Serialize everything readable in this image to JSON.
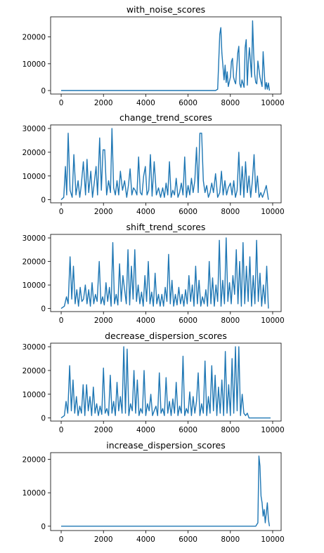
{
  "chart_data": [
    {
      "type": "line",
      "title": "with_noise_scores",
      "xlabel": "",
      "ylabel": "",
      "xlim": [
        -500,
        10400
      ],
      "ylim": [
        -1300,
        27500
      ],
      "xticks": [
        0,
        2000,
        4000,
        6000,
        8000,
        10000
      ],
      "yticks": [
        0,
        10000,
        20000
      ],
      "grid": false,
      "color": "#1f77b4",
      "x": [
        0,
        7300,
        7400,
        7500,
        7550,
        7600,
        7700,
        7750,
        7800,
        7850,
        7900,
        8000,
        8050,
        8100,
        8150,
        8200,
        8250,
        8350,
        8400,
        8450,
        8500,
        8550,
        8650,
        8700,
        8750,
        8800,
        8850,
        8900,
        9000,
        9050,
        9100,
        9150,
        9200,
        9250,
        9300,
        9400,
        9500,
        9550,
        9650,
        9700,
        9750,
        9800,
        9850
      ],
      "y": [
        0,
        0,
        500,
        21000,
        23500,
        14000,
        4000,
        9500,
        3000,
        7000,
        1500,
        5000,
        10800,
        12000,
        5000,
        3500,
        2500,
        14000,
        16500,
        2500,
        1200,
        4000,
        1200,
        16000,
        19000,
        2000,
        11000,
        16000,
        5000,
        26000,
        14000,
        6000,
        3000,
        2500,
        11000,
        5000,
        1500,
        14500,
        500,
        3000,
        500,
        2800,
        0
      ]
    },
    {
      "type": "line",
      "title": "change_trend_scores",
      "xlabel": "",
      "ylabel": "",
      "xlim": [
        -500,
        10400
      ],
      "ylim": [
        -1300,
        31500
      ],
      "xticks": [
        0,
        2000,
        4000,
        6000,
        8000,
        10000
      ],
      "yticks": [
        0,
        10000,
        20000,
        30000
      ],
      "grid": false,
      "color": "#1f77b4",
      "x": [
        0,
        120,
        200,
        260,
        330,
        420,
        520,
        600,
        700,
        800,
        880,
        950,
        1050,
        1150,
        1220,
        1300,
        1400,
        1480,
        1550,
        1650,
        1720,
        1820,
        1900,
        1980,
        2060,
        2150,
        2240,
        2330,
        2400,
        2480,
        2560,
        2640,
        2720,
        2800,
        2900,
        3000,
        3100,
        3180,
        3260,
        3340,
        3420,
        3500,
        3580,
        3660,
        3740,
        3820,
        3900,
        3980,
        4060,
        4140,
        4220,
        4300,
        4400,
        4500,
        4600,
        4700,
        4800,
        4880,
        4960,
        5040,
        5120,
        5200,
        5280,
        5360,
        5440,
        5520,
        5600,
        5680,
        5760,
        5840,
        5920,
        6000,
        6080,
        6160,
        6240,
        6320,
        6400,
        6480,
        6560,
        6640,
        6720,
        6800,
        6880,
        6960,
        7040,
        7120,
        7200,
        7300,
        7400,
        7500,
        7580,
        7660,
        7740,
        7820,
        7900,
        8000,
        8080,
        8160,
        8240,
        8320,
        8400,
        8480,
        8560,
        8640,
        8720,
        8800,
        8880,
        8960,
        9040,
        9120,
        9200,
        9280,
        9360,
        9440,
        9520,
        9600,
        9700,
        9800
      ],
      "y": [
        0,
        1000,
        14000,
        2000,
        28000,
        4000,
        1000,
        19000,
        2000,
        8000,
        1000,
        6000,
        16000,
        2000,
        17000,
        3000,
        12000,
        1000,
        6000,
        14000,
        2000,
        26000,
        4000,
        21000,
        21000,
        2000,
        8000,
        3000,
        30000,
        5000,
        2000,
        8000,
        2000,
        12000,
        4000,
        8000,
        1000,
        6000,
        13000,
        2000,
        5000,
        4000,
        2000,
        18000,
        3000,
        2000,
        10000,
        14000,
        2000,
        4000,
        19000,
        1500,
        16000,
        2000,
        5000,
        1000,
        5000,
        1000,
        7000,
        2000,
        16000,
        1000,
        4000,
        2000,
        9000,
        1000,
        3000,
        7000,
        2000,
        18000,
        1000,
        6000,
        2000,
        9000,
        3000,
        8000,
        22000,
        3000,
        28000,
        28000,
        8000,
        3000,
        6000,
        1000,
        3000,
        7000,
        3000,
        11000,
        1000,
        3000,
        12000,
        2000,
        8000,
        2000,
        5000,
        7000,
        2000,
        8000,
        1000,
        4000,
        20000,
        2000,
        14000,
        1000,
        16000,
        3000,
        10000,
        1000,
        8000,
        19000,
        3000,
        10000,
        1000,
        3000,
        1000,
        3000,
        6000,
        0
      ]
    },
    {
      "type": "line",
      "title": "shift_trend_scores",
      "xlabel": "",
      "ylabel": "",
      "xlim": [
        -500,
        10400
      ],
      "ylim": [
        -1300,
        31500
      ],
      "xticks": [
        0,
        2000,
        4000,
        6000,
        8000,
        10000
      ],
      "yticks": [
        0,
        10000,
        20000,
        30000
      ],
      "grid": false,
      "color": "#1f77b4",
      "x": [
        0,
        150,
        250,
        330,
        420,
        500,
        580,
        660,
        740,
        820,
        900,
        980,
        1060,
        1140,
        1220,
        1300,
        1380,
        1460,
        1540,
        1620,
        1700,
        1800,
        1880,
        1960,
        2040,
        2120,
        2200,
        2280,
        2360,
        2440,
        2520,
        2600,
        2680,
        2760,
        2840,
        2920,
        3000,
        3080,
        3160,
        3240,
        3320,
        3400,
        3480,
        3560,
        3640,
        3720,
        3800,
        3880,
        3960,
        4040,
        4120,
        4200,
        4280,
        4360,
        4440,
        4520,
        4600,
        4680,
        4760,
        4840,
        4920,
        5000,
        5080,
        5160,
        5240,
        5320,
        5400,
        5480,
        5560,
        5640,
        5720,
        5800,
        5880,
        5960,
        6040,
        6120,
        6200,
        6280,
        6360,
        6440,
        6520,
        6600,
        6680,
        6760,
        6840,
        6920,
        7000,
        7080,
        7160,
        7240,
        7320,
        7400,
        7480,
        7560,
        7640,
        7720,
        7800,
        7880,
        7960,
        8040,
        8120,
        8200,
        8280,
        8360,
        8440,
        8520,
        8600,
        8680,
        8760,
        8840,
        8920,
        9000,
        9080,
        9160,
        9240,
        9320,
        9400,
        9480,
        9560,
        9640,
        9720,
        9800
      ],
      "y": [
        0,
        1000,
        5000,
        2000,
        22000,
        4000,
        18000,
        2000,
        8000,
        1000,
        9000,
        3000,
        4000,
        10000,
        2000,
        8000,
        1000,
        11000,
        2000,
        6000,
        3000,
        20000,
        2000,
        5000,
        1500,
        11000,
        3000,
        9000,
        1000,
        28000,
        2000,
        6000,
        1500,
        19000,
        3000,
        14000,
        8000,
        2000,
        25000,
        1500,
        18000,
        4000,
        25000,
        3000,
        10000,
        2000,
        7000,
        1000,
        14000,
        3000,
        20000,
        2000,
        7000,
        1000,
        15000,
        2000,
        6000,
        1000,
        6000,
        1000,
        9000,
        3000,
        23000,
        2000,
        12000,
        1000,
        6000,
        1500,
        9000,
        2000,
        6000,
        1000,
        8000,
        2000,
        14000,
        3000,
        10000,
        1000,
        18000,
        2000,
        12000,
        1000,
        5000,
        2000,
        8000,
        1000,
        20000,
        2000,
        13000,
        1000,
        10000,
        3000,
        29000,
        1000,
        12000,
        2000,
        30000,
        3000,
        11000,
        2000,
        14000,
        6000,
        25000,
        2000,
        20000,
        1000,
        28000,
        2000,
        18000,
        3000,
        22000,
        1000,
        14000,
        2000,
        29000,
        3000,
        15000,
        1000,
        10000,
        2000,
        18000,
        0
      ]
    },
    {
      "type": "line",
      "title": "decrease_dispersion_scores",
      "xlabel": "",
      "ylabel": "",
      "xlim": [
        -500,
        10400
      ],
      "ylim": [
        -1300,
        31500
      ],
      "xticks": [
        0,
        2000,
        4000,
        6000,
        8000,
        10000
      ],
      "yticks": [
        0,
        10000,
        20000,
        30000
      ],
      "grid": false,
      "color": "#1f77b4",
      "x": [
        0,
        150,
        230,
        310,
        400,
        480,
        560,
        640,
        720,
        800,
        880,
        960,
        1040,
        1120,
        1200,
        1280,
        1360,
        1440,
        1520,
        1600,
        1680,
        1760,
        1840,
        1920,
        2000,
        2080,
        2160,
        2240,
        2320,
        2400,
        2480,
        2560,
        2640,
        2720,
        2800,
        2880,
        2960,
        3040,
        3120,
        3200,
        3280,
        3360,
        3440,
        3520,
        3600,
        3680,
        3760,
        3840,
        3920,
        4000,
        4080,
        4160,
        4240,
        4320,
        4400,
        4480,
        4560,
        4640,
        4720,
        4800,
        4880,
        4960,
        5040,
        5120,
        5200,
        5280,
        5360,
        5440,
        5520,
        5600,
        5680,
        5760,
        5840,
        5920,
        6000,
        6080,
        6160,
        6240,
        6320,
        6400,
        6480,
        6560,
        6640,
        6720,
        6800,
        6880,
        6960,
        7040,
        7120,
        7200,
        7280,
        7360,
        7440,
        7520,
        7600,
        7680,
        7760,
        7840,
        7920,
        8000,
        8080,
        8160,
        8240,
        8320,
        8400,
        8480,
        8560,
        8640,
        8720,
        8800,
        8880,
        8960,
        9040,
        9200,
        9500,
        9900
      ],
      "y": [
        0,
        1000,
        7000,
        2000,
        22000,
        3000,
        16000,
        2000,
        9000,
        1000,
        5000,
        2000,
        14000,
        1000,
        14000,
        3000,
        9000,
        1000,
        13000,
        2000,
        6000,
        1000,
        5000,
        1500,
        21000,
        2000,
        4000,
        1000,
        18000,
        2000,
        7000,
        1000,
        15000,
        3000,
        9000,
        2000,
        30000,
        2000,
        29000,
        1000,
        6000,
        3000,
        20000,
        2000,
        16000,
        1000,
        4000,
        2000,
        20000,
        1000,
        6000,
        3000,
        10000,
        1000,
        3000,
        5000,
        1000,
        19000,
        2000,
        4000,
        1000,
        17000,
        2000,
        7000,
        1000,
        8000,
        2000,
        15000,
        1000,
        5000,
        2000,
        26000,
        1000,
        4000,
        2000,
        11000,
        1000,
        9000,
        2000,
        7000,
        19000,
        1000,
        6000,
        2000,
        24000,
        1000,
        9000,
        2000,
        22000,
        3000,
        18000,
        1000,
        13000,
        2000,
        16000,
        1000,
        28000,
        2000,
        14000,
        1000,
        25000,
        2000,
        30000,
        3000,
        30000,
        1000,
        10000,
        2000,
        1000,
        2000,
        0,
        0,
        0,
        0,
        0,
        0
      ]
    },
    {
      "type": "line",
      "title": "increase_dispersion_scores",
      "xlabel": "",
      "ylabel": "",
      "xlim": [
        -500,
        10400
      ],
      "ylim": [
        -1300,
        22000
      ],
      "xticks": [
        0,
        2000,
        4000,
        6000,
        8000,
        10000
      ],
      "yticks": [
        0,
        10000,
        20000
      ],
      "grid": false,
      "color": "#1f77b4",
      "x": [
        0,
        9200,
        9300,
        9350,
        9400,
        9450,
        9500,
        9550,
        9600,
        9650,
        9700,
        9750,
        9800,
        9850
      ],
      "y": [
        0,
        0,
        1000,
        21000,
        18000,
        9000,
        7000,
        3000,
        5000,
        1000,
        4000,
        7000,
        2000,
        0
      ]
    }
  ]
}
